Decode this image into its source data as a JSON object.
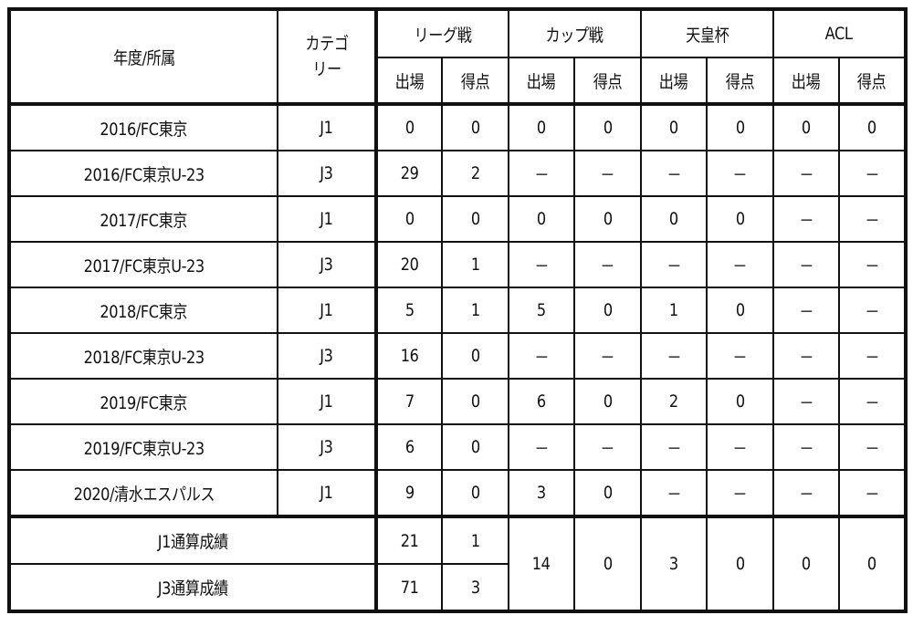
{
  "header": {
    "season_club": "年度/所属",
    "category": "カテゴリー",
    "competitions": [
      "リーグ戦",
      "カップ戦",
      "天皇杯",
      "ACL"
    ],
    "apps": "出場",
    "goals": "得点"
  },
  "rows": [
    {
      "season": "2016/FC東京",
      "cat": "J1",
      "v": [
        "0",
        "0",
        "0",
        "0",
        "0",
        "0",
        "0",
        "0"
      ]
    },
    {
      "season": "2016/FC東京U-23",
      "cat": "J3",
      "v": [
        "29",
        "2",
        "－",
        "－",
        "－",
        "－",
        "－",
        "－"
      ]
    },
    {
      "season": "2017/FC東京",
      "cat": "J1",
      "v": [
        "0",
        "0",
        "0",
        "0",
        "0",
        "0",
        "－",
        "－"
      ]
    },
    {
      "season": "2017/FC東京U-23",
      "cat": "J3",
      "v": [
        "20",
        "1",
        "－",
        "－",
        "－",
        "－",
        "－",
        "－"
      ]
    },
    {
      "season": "2018/FC東京",
      "cat": "J1",
      "v": [
        "5",
        "1",
        "5",
        "0",
        "1",
        "0",
        "－",
        "－"
      ]
    },
    {
      "season": "2018/FC東京U-23",
      "cat": "J3",
      "v": [
        "16",
        "0",
        "－",
        "－",
        "－",
        "－",
        "－",
        "－"
      ]
    },
    {
      "season": "2019/FC東京",
      "cat": "J1",
      "v": [
        "7",
        "0",
        "6",
        "0",
        "2",
        "0",
        "－",
        "－"
      ]
    },
    {
      "season": "2019/FC東京U-23",
      "cat": "J3",
      "v": [
        "6",
        "0",
        "－",
        "－",
        "－",
        "－",
        "－",
        "－"
      ]
    },
    {
      "season": "2020/清水エスパルス",
      "cat": "J1",
      "v": [
        "9",
        "0",
        "3",
        "0",
        "－",
        "－",
        "－",
        "－"
      ]
    }
  ],
  "totals": {
    "j1_label": "J1通算成績",
    "j1_league": [
      "21",
      "1"
    ],
    "j3_label": "J3通算成績",
    "j3_league": [
      "71",
      "3"
    ],
    "shared": [
      "14",
      "0",
      "3",
      "0",
      "0",
      "0"
    ]
  }
}
